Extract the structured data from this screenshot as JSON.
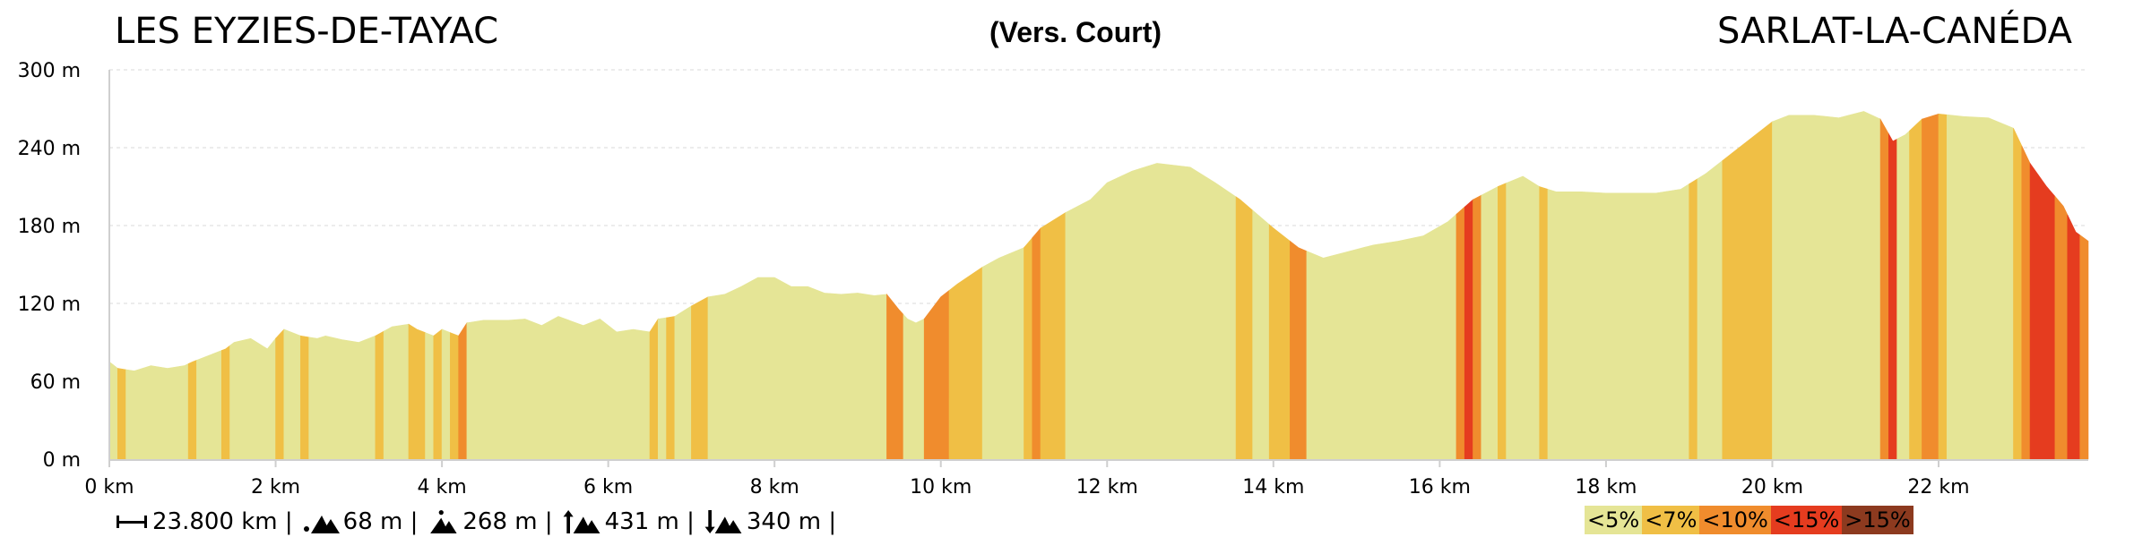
{
  "header": {
    "start": "LES EYZIES-DE-TAYAC",
    "subtitle": "(Vers. Court)",
    "end": "SARLAT-LA-CANÉDA"
  },
  "stats": {
    "distance": "23.800 km |",
    "min_altitude": "68 m |",
    "max_altitude": "268 m |",
    "ascent": "431 m |",
    "descent": "340 m |"
  },
  "legend": [
    {
      "label": "<5%",
      "color": "#e5e596"
    },
    {
      "label": "<7%",
      "color": "#f0bf45"
    },
    {
      "label": "<10%",
      "color": "#f08c2d"
    },
    {
      "label": "<15%",
      "color": "#e53c1f"
    },
    {
      "label": ">15%",
      "color": "#8c3a1f"
    }
  ],
  "chart_data": {
    "type": "area",
    "title": "",
    "xlabel": "",
    "ylabel": "",
    "x_unit": "km",
    "y_unit": "m",
    "xlim": [
      0,
      23.8
    ],
    "ylim": [
      0,
      300
    ],
    "grid": true,
    "x_ticks": [
      0,
      2,
      4,
      6,
      8,
      10,
      12,
      14,
      16,
      18,
      20,
      22
    ],
    "x_tick_labels": [
      "0 km",
      "2 km",
      "4 km",
      "6 km",
      "8 km",
      "10 km",
      "12 km",
      "14 km",
      "16 km",
      "18 km",
      "20 km",
      "22 km"
    ],
    "y_ticks": [
      0,
      60,
      120,
      180,
      240,
      300
    ],
    "y_tick_labels": [
      "0 m",
      "60 m",
      "120 m",
      "180 m",
      "240 m",
      "300 m"
    ],
    "elevation_profile": [
      [
        0.0,
        75
      ],
      [
        0.1,
        70
      ],
      [
        0.3,
        68
      ],
      [
        0.5,
        72
      ],
      [
        0.7,
        70
      ],
      [
        0.9,
        72
      ],
      [
        1.0,
        75
      ],
      [
        1.2,
        80
      ],
      [
        1.4,
        85
      ],
      [
        1.5,
        90
      ],
      [
        1.7,
        93
      ],
      [
        1.9,
        85
      ],
      [
        2.0,
        93
      ],
      [
        2.1,
        100
      ],
      [
        2.3,
        95
      ],
      [
        2.5,
        93
      ],
      [
        2.6,
        95
      ],
      [
        2.8,
        92
      ],
      [
        3.0,
        90
      ],
      [
        3.2,
        95
      ],
      [
        3.4,
        102
      ],
      [
        3.6,
        104
      ],
      [
        3.7,
        100
      ],
      [
        3.9,
        95
      ],
      [
        4.0,
        100
      ],
      [
        4.2,
        95
      ],
      [
        4.3,
        105
      ],
      [
        4.5,
        107
      ],
      [
        4.8,
        107
      ],
      [
        5.0,
        108
      ],
      [
        5.2,
        103
      ],
      [
        5.4,
        110
      ],
      [
        5.7,
        103
      ],
      [
        5.9,
        108
      ],
      [
        6.1,
        98
      ],
      [
        6.3,
        100
      ],
      [
        6.5,
        98
      ],
      [
        6.6,
        108
      ],
      [
        6.8,
        110
      ],
      [
        7.0,
        118
      ],
      [
        7.2,
        125
      ],
      [
        7.4,
        127
      ],
      [
        7.6,
        133
      ],
      [
        7.8,
        140
      ],
      [
        8.0,
        140
      ],
      [
        8.2,
        133
      ],
      [
        8.4,
        133
      ],
      [
        8.6,
        128
      ],
      [
        8.8,
        127
      ],
      [
        9.0,
        128
      ],
      [
        9.2,
        126
      ],
      [
        9.35,
        127
      ],
      [
        9.5,
        115
      ],
      [
        9.6,
        108
      ],
      [
        9.7,
        105
      ],
      [
        9.8,
        108
      ],
      [
        10.0,
        125
      ],
      [
        10.2,
        135
      ],
      [
        10.5,
        148
      ],
      [
        10.7,
        155
      ],
      [
        11.0,
        163
      ],
      [
        11.2,
        178
      ],
      [
        11.5,
        190
      ],
      [
        11.8,
        200
      ],
      [
        12.0,
        213
      ],
      [
        12.3,
        222
      ],
      [
        12.6,
        228
      ],
      [
        13.0,
        225
      ],
      [
        13.3,
        213
      ],
      [
        13.6,
        200
      ],
      [
        14.0,
        178
      ],
      [
        14.3,
        163
      ],
      [
        14.6,
        155
      ],
      [
        14.9,
        160
      ],
      [
        15.2,
        165
      ],
      [
        15.5,
        168
      ],
      [
        15.8,
        172
      ],
      [
        16.1,
        183
      ],
      [
        16.4,
        200
      ],
      [
        16.7,
        210
      ],
      [
        17.0,
        218
      ],
      [
        17.2,
        210
      ],
      [
        17.4,
        206
      ],
      [
        17.7,
        206
      ],
      [
        18.0,
        205
      ],
      [
        18.3,
        205
      ],
      [
        18.6,
        205
      ],
      [
        18.9,
        208
      ],
      [
        19.2,
        220
      ],
      [
        19.5,
        235
      ],
      [
        19.8,
        250
      ],
      [
        20.0,
        260
      ],
      [
        20.2,
        265
      ],
      [
        20.5,
        265
      ],
      [
        20.8,
        263
      ],
      [
        21.1,
        268
      ],
      [
        21.3,
        262
      ],
      [
        21.45,
        245
      ],
      [
        21.6,
        250
      ],
      [
        21.8,
        262
      ],
      [
        22.0,
        266
      ],
      [
        22.3,
        264
      ],
      [
        22.6,
        263
      ],
      [
        22.9,
        255
      ],
      [
        23.1,
        228
      ],
      [
        23.3,
        210
      ],
      [
        23.5,
        195
      ],
      [
        23.65,
        175
      ],
      [
        23.8,
        168
      ]
    ],
    "slope_segments": [
      [
        0.0,
        0.1,
        "<5%"
      ],
      [
        0.1,
        0.2,
        "<7%"
      ],
      [
        0.2,
        0.95,
        "<5%"
      ],
      [
        0.95,
        1.05,
        "<7%"
      ],
      [
        1.05,
        1.35,
        "<5%"
      ],
      [
        1.35,
        1.45,
        "<7%"
      ],
      [
        1.45,
        2.0,
        "<5%"
      ],
      [
        2.0,
        2.1,
        "<7%"
      ],
      [
        2.1,
        2.3,
        "<5%"
      ],
      [
        2.3,
        2.4,
        "<7%"
      ],
      [
        2.4,
        3.2,
        "<5%"
      ],
      [
        3.2,
        3.3,
        "<7%"
      ],
      [
        3.3,
        3.6,
        "<5%"
      ],
      [
        3.6,
        3.8,
        "<7%"
      ],
      [
        3.8,
        3.9,
        "<5%"
      ],
      [
        3.9,
        4.0,
        "<7%"
      ],
      [
        4.0,
        4.1,
        "<5%"
      ],
      [
        4.1,
        4.2,
        "<7%"
      ],
      [
        4.2,
        4.3,
        "<10%"
      ],
      [
        4.3,
        6.5,
        "<5%"
      ],
      [
        6.5,
        6.6,
        "<7%"
      ],
      [
        6.6,
        6.7,
        "<5%"
      ],
      [
        6.7,
        6.8,
        "<7%"
      ],
      [
        6.8,
        7.0,
        "<5%"
      ],
      [
        7.0,
        7.2,
        "<7%"
      ],
      [
        7.2,
        9.35,
        "<5%"
      ],
      [
        9.35,
        9.55,
        "<10%"
      ],
      [
        9.55,
        9.8,
        "<5%"
      ],
      [
        9.8,
        10.1,
        "<10%"
      ],
      [
        10.1,
        10.5,
        "<7%"
      ],
      [
        10.5,
        11.0,
        "<5%"
      ],
      [
        11.0,
        11.1,
        "<7%"
      ],
      [
        11.1,
        11.2,
        "<10%"
      ],
      [
        11.2,
        11.5,
        "<7%"
      ],
      [
        11.5,
        13.55,
        "<5%"
      ],
      [
        13.55,
        13.75,
        "<7%"
      ],
      [
        13.75,
        13.95,
        "<5%"
      ],
      [
        13.95,
        14.2,
        "<7%"
      ],
      [
        14.2,
        14.4,
        "<10%"
      ],
      [
        14.4,
        16.2,
        "<5%"
      ],
      [
        16.2,
        16.3,
        "<10%"
      ],
      [
        16.3,
        16.4,
        "<15%"
      ],
      [
        16.4,
        16.5,
        "<10%"
      ],
      [
        16.5,
        16.7,
        "<5%"
      ],
      [
        16.7,
        16.8,
        "<7%"
      ],
      [
        16.8,
        17.2,
        "<5%"
      ],
      [
        17.2,
        17.3,
        "<7%"
      ],
      [
        17.3,
        19.0,
        "<5%"
      ],
      [
        19.0,
        19.1,
        "<7%"
      ],
      [
        19.1,
        19.4,
        "<5%"
      ],
      [
        19.4,
        20.0,
        "<7%"
      ],
      [
        20.0,
        21.3,
        "<5%"
      ],
      [
        21.3,
        21.4,
        "<10%"
      ],
      [
        21.4,
        21.5,
        "<15%"
      ],
      [
        21.5,
        21.65,
        "<5%"
      ],
      [
        21.65,
        21.8,
        "<7%"
      ],
      [
        21.8,
        22.0,
        "<10%"
      ],
      [
        22.0,
        22.1,
        "<7%"
      ],
      [
        22.1,
        22.9,
        "<5%"
      ],
      [
        22.9,
        23.0,
        "<7%"
      ],
      [
        23.0,
        23.1,
        "<10%"
      ],
      [
        23.1,
        23.4,
        "<15%"
      ],
      [
        23.4,
        23.55,
        "<10%"
      ],
      [
        23.55,
        23.7,
        "<15%"
      ],
      [
        23.7,
        23.8,
        "<10%"
      ]
    ]
  }
}
